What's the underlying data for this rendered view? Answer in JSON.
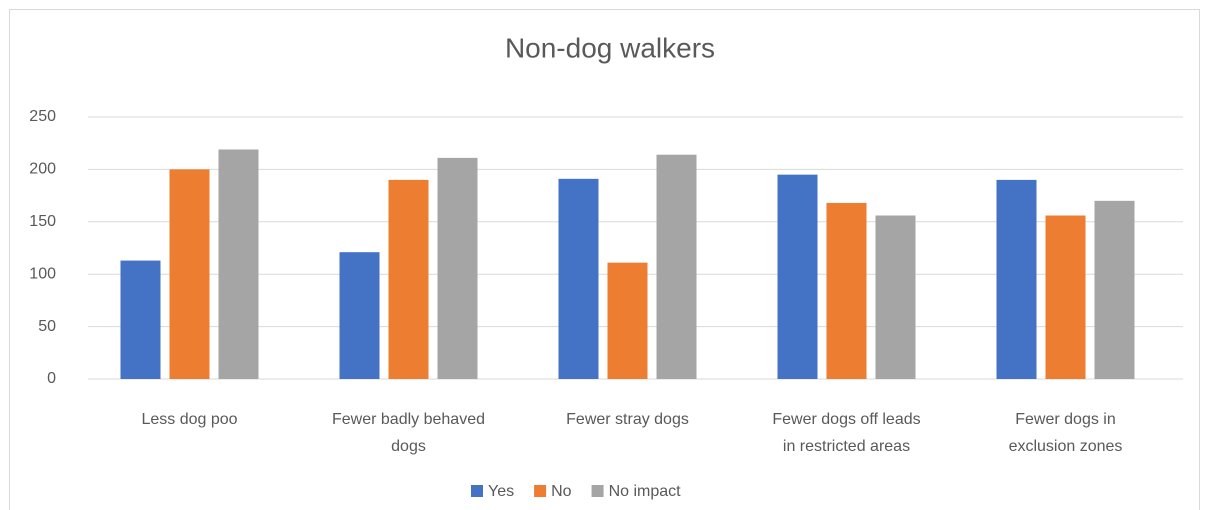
{
  "chart_data": {
    "type": "bar",
    "title": "Non-dog walkers",
    "categories": [
      "Less dog poo",
      "Fewer badly behaved dogs",
      "Fewer stray dogs",
      "Fewer dogs off leads in restricted areas",
      "Fewer dogs in exclusion zones"
    ],
    "series": [
      {
        "name": "Yes",
        "color": "#4472c4",
        "values": [
          113,
          121,
          191,
          195,
          190
        ]
      },
      {
        "name": "No",
        "color": "#ed7d31",
        "values": [
          200,
          190,
          111,
          168,
          156
        ]
      },
      {
        "name": "No impact",
        "color": "#a5a5a5",
        "values": [
          219,
          211,
          214,
          156,
          170
        ]
      }
    ],
    "ylim": [
      0,
      250
    ],
    "yticks": [
      0,
      50,
      100,
      150,
      200,
      250
    ],
    "grid": true,
    "legend": "bottom"
  }
}
